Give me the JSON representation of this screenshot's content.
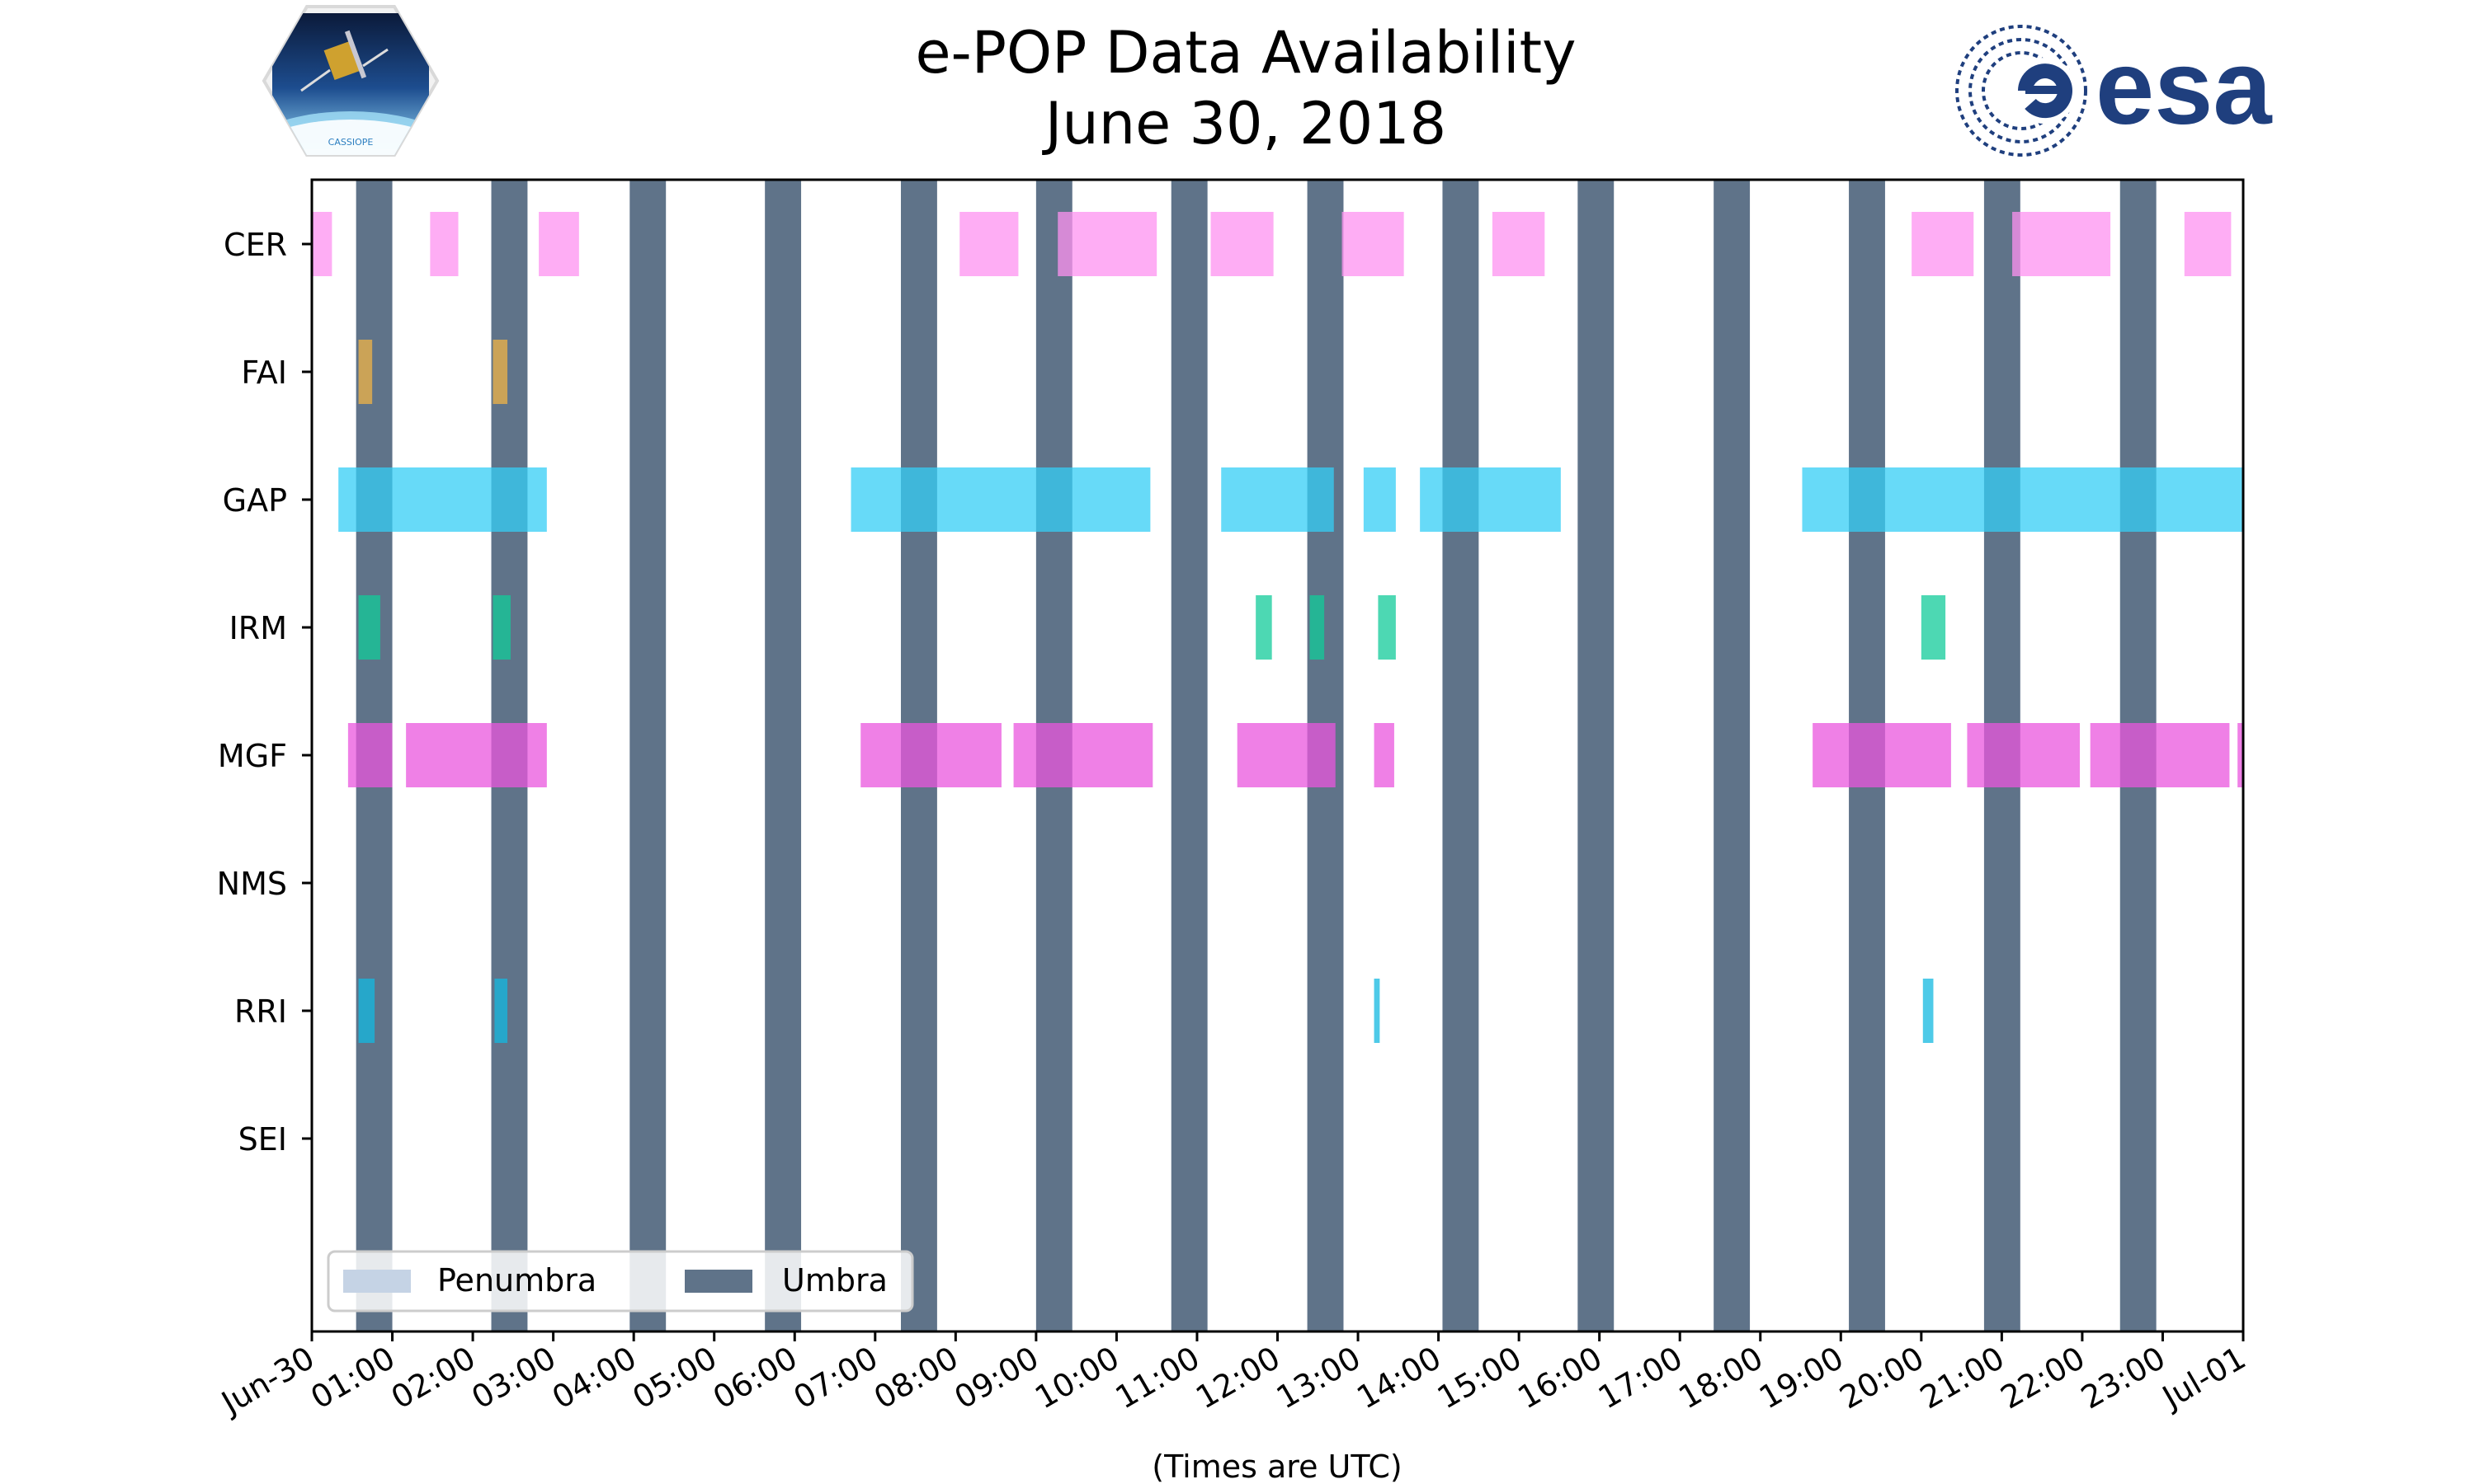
{
  "chart_data": {
    "type": "timeline",
    "title": "e-POP Data Availability",
    "subtitle": "June 30, 2018",
    "xlabel": "(Times are UTC)",
    "xlim": [
      0,
      24
    ],
    "x_ticks": [
      {
        "hour": 0,
        "label": "Jun-30"
      },
      {
        "hour": 1,
        "label": "01:00"
      },
      {
        "hour": 2,
        "label": "02:00"
      },
      {
        "hour": 3,
        "label": "03:00"
      },
      {
        "hour": 4,
        "label": "04:00"
      },
      {
        "hour": 5,
        "label": "05:00"
      },
      {
        "hour": 6,
        "label": "06:00"
      },
      {
        "hour": 7,
        "label": "07:00"
      },
      {
        "hour": 8,
        "label": "08:00"
      },
      {
        "hour": 9,
        "label": "09:00"
      },
      {
        "hour": 10,
        "label": "10:00"
      },
      {
        "hour": 11,
        "label": "11:00"
      },
      {
        "hour": 12,
        "label": "12:00"
      },
      {
        "hour": 13,
        "label": "13:00"
      },
      {
        "hour": 14,
        "label": "14:00"
      },
      {
        "hour": 15,
        "label": "15:00"
      },
      {
        "hour": 16,
        "label": "16:00"
      },
      {
        "hour": 17,
        "label": "17:00"
      },
      {
        "hour": 18,
        "label": "18:00"
      },
      {
        "hour": 19,
        "label": "19:00"
      },
      {
        "hour": 20,
        "label": "20:00"
      },
      {
        "hour": 21,
        "label": "21:00"
      },
      {
        "hour": 22,
        "label": "22:00"
      },
      {
        "hour": 23,
        "label": "23:00"
      },
      {
        "hour": 24,
        "label": "Jul-01"
      }
    ],
    "categories": [
      "CER",
      "FAI",
      "GAP",
      "IRM",
      "MGF",
      "NMS",
      "RRI",
      "SEI"
    ],
    "umbra_intervals": [
      [
        0.55,
        1.0
      ],
      [
        2.23,
        2.68
      ],
      [
        3.95,
        4.4
      ],
      [
        5.63,
        6.08
      ],
      [
        7.32,
        7.77
      ],
      [
        9.0,
        9.45
      ],
      [
        10.68,
        11.13
      ],
      [
        12.37,
        12.82
      ],
      [
        14.05,
        14.5
      ],
      [
        15.73,
        16.18
      ],
      [
        17.42,
        17.87
      ],
      [
        19.1,
        19.55
      ],
      [
        20.78,
        21.23
      ],
      [
        22.47,
        22.92
      ]
    ],
    "series": [
      {
        "name": "CER",
        "color": "#fd91f0",
        "intervals": [
          [
            0.0,
            0.25
          ],
          [
            1.47,
            1.82
          ],
          [
            2.82,
            3.32
          ],
          [
            8.05,
            8.78
          ],
          [
            9.27,
            10.5
          ],
          [
            11.17,
            11.95
          ],
          [
            12.8,
            13.57
          ],
          [
            14.67,
            15.32
          ],
          [
            19.88,
            20.65
          ],
          [
            21.13,
            22.35
          ],
          [
            23.27,
            23.85
          ]
        ]
      },
      {
        "name": "FAI",
        "color": "#efb347",
        "intervals": [
          [
            0.58,
            0.75
          ],
          [
            2.25,
            2.43
          ]
        ]
      },
      {
        "name": "GAP",
        "color": "#34cdf5",
        "intervals": [
          [
            0.33,
            2.92
          ],
          [
            6.7,
            10.42
          ],
          [
            11.3,
            12.7
          ],
          [
            13.07,
            13.47
          ],
          [
            13.77,
            15.52
          ],
          [
            18.52,
            24.0
          ]
        ]
      },
      {
        "name": "IRM",
        "color": "#12cb99",
        "intervals": [
          [
            0.58,
            0.85
          ],
          [
            2.25,
            2.47
          ],
          [
            11.73,
            11.93
          ],
          [
            12.4,
            12.58
          ],
          [
            13.25,
            13.47
          ],
          [
            20.0,
            20.3
          ]
        ]
      },
      {
        "name": "MGF",
        "color": "#e955dd",
        "intervals": [
          [
            0.45,
            1.0
          ],
          [
            1.17,
            2.92
          ],
          [
            6.82,
            8.57
          ],
          [
            8.72,
            10.45
          ],
          [
            11.5,
            12.72
          ],
          [
            13.2,
            13.45
          ],
          [
            18.65,
            20.37
          ],
          [
            20.57,
            21.97
          ],
          [
            22.1,
            23.83
          ],
          [
            23.93,
            24.0
          ]
        ]
      },
      {
        "name": "NMS",
        "color": "#888888",
        "intervals": []
      },
      {
        "name": "RRI",
        "color": "#13b8e0",
        "intervals": [
          [
            0.58,
            0.78
          ],
          [
            2.27,
            2.43
          ],
          [
            13.2,
            13.27
          ],
          [
            20.02,
            20.15
          ]
        ]
      },
      {
        "name": "SEI",
        "color": "#888888",
        "intervals": []
      }
    ],
    "umbra_color": "#5f7389",
    "penumbra_color": "#c5d3e5",
    "legend": {
      "position": "lower-left",
      "entries": [
        "Penumbra",
        "Umbra"
      ]
    }
  },
  "logos": {
    "left": {
      "name": "CASSIOPE"
    },
    "right": {
      "name": "esa"
    }
  }
}
